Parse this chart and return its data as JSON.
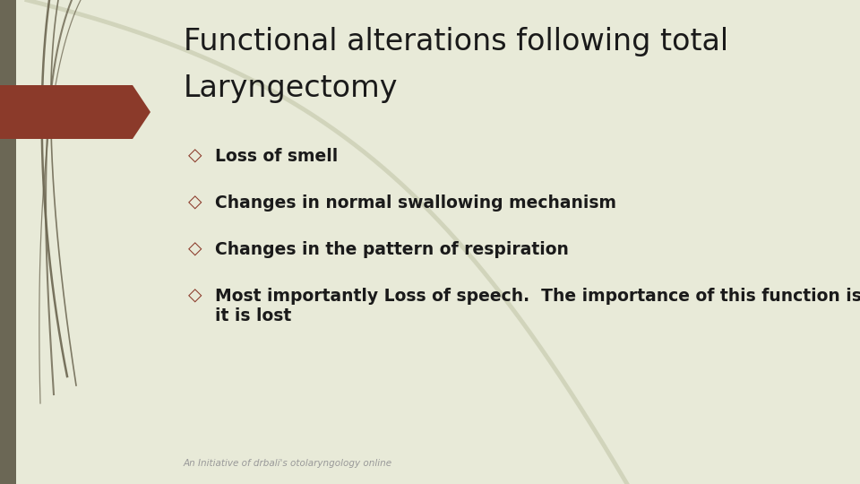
{
  "title_line1": "Functional alterations following total",
  "title_line2": "Laryngectomy",
  "bullet_points": [
    "Loss of smell",
    "Changes in normal swallowing mechanism",
    "Changes in the pattern of respiration",
    "Most importantly Loss of speech.  The importance of this function is not realized till\nit is lost"
  ],
  "background_color": "#e8ead8",
  "title_color": "#1a1a1a",
  "bullet_color": "#1a1a1a",
  "bullet_marker_color": "#8B3A2A",
  "footer_text": "An Initiative of drbali's otolaryngology online",
  "footer_color": "#999999",
  "accent_arrow_color": "#8B3A2A",
  "left_bar_color": "#6b6755",
  "vine_dark_color": "#6b6550",
  "vine_pale_color": "#c8cbb0",
  "title_fontsize": 24,
  "bullet_fontsize": 13.5,
  "footer_fontsize": 7.5
}
